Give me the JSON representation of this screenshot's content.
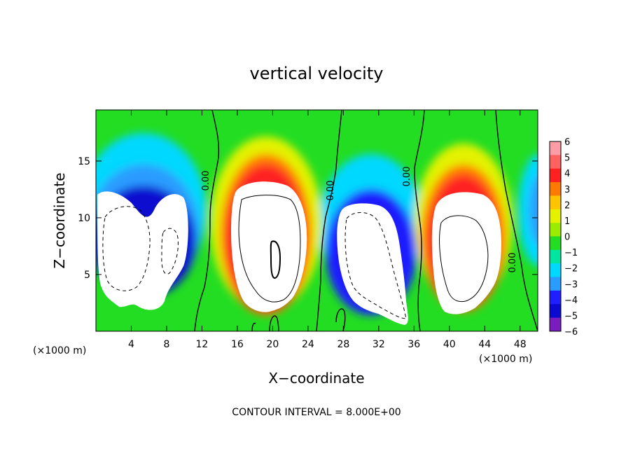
{
  "chart_data": {
    "type": "heatmap",
    "title": "vertical velocity",
    "xlabel": "X−coordinate",
    "ylabel": "Z−coordinate",
    "x_unit_left": "(×1000 m)",
    "x_unit_right": "(×1000 m)",
    "footer": "CONTOUR INTERVAL = 8.000E+00",
    "xlim": [
      0,
      50
    ],
    "ylim": [
      0,
      19.5
    ],
    "x_ticks": [
      4,
      8,
      12,
      16,
      20,
      24,
      28,
      32,
      36,
      40,
      44,
      48
    ],
    "y_ticks": [
      5,
      10,
      15
    ],
    "colorbar": {
      "ticks": [
        "6",
        "5",
        "4",
        "3",
        "2",
        "1",
        "0",
        "−1",
        "−2",
        "−3",
        "−4",
        "−5",
        "−6"
      ],
      "colors": [
        "#ff9da6",
        "#ff6060",
        "#ff2020",
        "#ff7a00",
        "#ffc400",
        "#e4f200",
        "#9cec00",
        "#22dd22",
        "#00e6a0",
        "#00d8ff",
        "#2a9cff",
        "#1f1fff",
        "#0a0ad0",
        "#7a1cc0"
      ]
    },
    "contour_labels": [
      "0.00",
      "0.00",
      "0.00",
      "0.00"
    ],
    "cells": [
      {
        "x0": 0,
        "x1": 11,
        "sign": "negative",
        "center_x": 6,
        "core_z": [
          1.5,
          12.5
        ]
      },
      {
        "x0": 13,
        "x1": 24,
        "sign": "positive",
        "center_x": 19.5,
        "core_z": [
          2,
          12
        ]
      },
      {
        "x0": 25.5,
        "x1": 36,
        "sign": "negative",
        "center_x": 30.5,
        "core_z": [
          1,
          11.5
        ]
      },
      {
        "x0": 37,
        "x1": 47,
        "sign": "positive",
        "center_x": 41,
        "core_z": [
          1,
          10.5
        ]
      }
    ]
  }
}
